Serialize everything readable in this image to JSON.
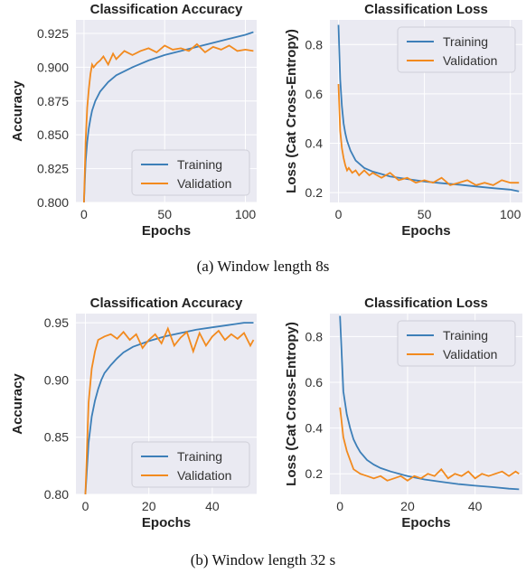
{
  "colors": {
    "training": "#3d7fb8",
    "validation": "#f28a1e",
    "grid": "#ffffff",
    "plot_bg": "#eaeaf2"
  },
  "captions": {
    "a": "(a) Window length 8s",
    "b": "(b) Window length 32 s"
  },
  "chart_data": [
    {
      "type": "line",
      "title": "Classification Accuracy",
      "xlabel": "Epochs",
      "ylabel": "Accuracy",
      "xlim": [
        -5,
        107
      ],
      "ylim": [
        0.8,
        0.935
      ],
      "xticks": [
        0,
        50,
        100
      ],
      "yticks": [
        0.8,
        0.825,
        0.85,
        0.875,
        0.9,
        0.925
      ],
      "ytick_labels": [
        "0.800",
        "0.825",
        "0.850",
        "0.875",
        "0.900",
        "0.925"
      ],
      "grid": true,
      "legend": "bottom-right",
      "series": [
        {
          "name": "Training",
          "x": [
            0,
            1,
            2,
            3,
            4,
            5,
            7,
            10,
            15,
            20,
            30,
            40,
            50,
            60,
            70,
            80,
            90,
            100,
            105
          ],
          "y": [
            0.8,
            0.83,
            0.845,
            0.855,
            0.862,
            0.868,
            0.875,
            0.882,
            0.889,
            0.894,
            0.9,
            0.905,
            0.909,
            0.912,
            0.915,
            0.918,
            0.921,
            0.924,
            0.926
          ]
        },
        {
          "name": "Validation",
          "x": [
            0,
            1,
            2,
            3,
            4,
            5,
            6,
            8,
            10,
            12,
            15,
            18,
            20,
            25,
            30,
            35,
            40,
            45,
            50,
            55,
            60,
            65,
            70,
            75,
            80,
            85,
            90,
            95,
            100,
            105
          ],
          "y": [
            0.8,
            0.845,
            0.87,
            0.884,
            0.895,
            0.902,
            0.9,
            0.903,
            0.905,
            0.908,
            0.902,
            0.91,
            0.906,
            0.912,
            0.909,
            0.912,
            0.914,
            0.911,
            0.916,
            0.913,
            0.914,
            0.912,
            0.917,
            0.911,
            0.915,
            0.913,
            0.916,
            0.912,
            0.913,
            0.912
          ]
        }
      ]
    },
    {
      "type": "line",
      "title": "Classification Loss",
      "xlabel": "Epochs",
      "ylabel": "Loss (Cat Cross-Entropy)",
      "xlim": [
        -5,
        107
      ],
      "ylim": [
        0.16,
        0.9
      ],
      "xticks": [
        0,
        50,
        100
      ],
      "yticks": [
        0.2,
        0.4,
        0.6,
        0.8
      ],
      "ytick_labels": [
        "0.2",
        "0.4",
        "0.6",
        "0.8"
      ],
      "grid": true,
      "legend": "top-right",
      "series": [
        {
          "name": "Training",
          "x": [
            0,
            1,
            2,
            3,
            4,
            5,
            7,
            10,
            15,
            20,
            30,
            40,
            50,
            60,
            70,
            80,
            90,
            100,
            105
          ],
          "y": [
            0.88,
            0.66,
            0.55,
            0.48,
            0.44,
            0.41,
            0.37,
            0.33,
            0.3,
            0.285,
            0.265,
            0.255,
            0.245,
            0.238,
            0.232,
            0.225,
            0.218,
            0.212,
            0.205
          ]
        },
        {
          "name": "Validation",
          "x": [
            0,
            1,
            2,
            3,
            4,
            5,
            6,
            8,
            10,
            12,
            15,
            18,
            20,
            25,
            30,
            35,
            40,
            45,
            50,
            55,
            60,
            65,
            70,
            75,
            80,
            85,
            90,
            95,
            100,
            105
          ],
          "y": [
            0.64,
            0.45,
            0.38,
            0.34,
            0.31,
            0.29,
            0.3,
            0.28,
            0.29,
            0.27,
            0.29,
            0.27,
            0.28,
            0.26,
            0.28,
            0.25,
            0.26,
            0.24,
            0.25,
            0.24,
            0.26,
            0.23,
            0.24,
            0.25,
            0.23,
            0.24,
            0.23,
            0.25,
            0.24,
            0.24
          ]
        }
      ]
    },
    {
      "type": "line",
      "title": "Classification Accuracy",
      "xlabel": "Epochs",
      "ylabel": "Accuracy",
      "xlim": [
        -3,
        54
      ],
      "ylim": [
        0.8,
        0.958
      ],
      "xticks": [
        0,
        20,
        40
      ],
      "yticks": [
        0.8,
        0.85,
        0.9,
        0.95
      ],
      "ytick_labels": [
        "0.80",
        "0.85",
        "0.90",
        "0.95"
      ],
      "grid": true,
      "legend": "bottom-right",
      "series": [
        {
          "name": "Training",
          "x": [
            0,
            1,
            2,
            3,
            4,
            5,
            6,
            8,
            10,
            12,
            15,
            20,
            25,
            30,
            35,
            40,
            45,
            50,
            53
          ],
          "y": [
            0.8,
            0.845,
            0.868,
            0.882,
            0.892,
            0.9,
            0.906,
            0.913,
            0.919,
            0.924,
            0.929,
            0.934,
            0.938,
            0.941,
            0.944,
            0.946,
            0.948,
            0.95,
            0.95
          ]
        },
        {
          "name": "Validation",
          "x": [
            0,
            1,
            2,
            3,
            4,
            6,
            8,
            10,
            12,
            14,
            16,
            18,
            20,
            22,
            24,
            26,
            28,
            30,
            32,
            34,
            36,
            38,
            40,
            42,
            44,
            46,
            48,
            50,
            52,
            53
          ],
          "y": [
            0.8,
            0.88,
            0.91,
            0.925,
            0.935,
            0.938,
            0.94,
            0.936,
            0.942,
            0.935,
            0.94,
            0.928,
            0.935,
            0.94,
            0.932,
            0.945,
            0.93,
            0.937,
            0.942,
            0.925,
            0.941,
            0.93,
            0.938,
            0.943,
            0.935,
            0.94,
            0.936,
            0.941,
            0.93,
            0.935
          ]
        }
      ]
    },
    {
      "type": "line",
      "title": "Classification Loss",
      "xlabel": "Epochs",
      "ylabel": "Loss (Cat Cross-Entropy)",
      "xlim": [
        -3,
        54
      ],
      "ylim": [
        0.11,
        0.9
      ],
      "xticks": [
        0,
        20,
        40
      ],
      "yticks": [
        0.2,
        0.4,
        0.6,
        0.8
      ],
      "ytick_labels": [
        "0.2",
        "0.4",
        "0.6",
        "0.8"
      ],
      "grid": true,
      "legend": "top-right",
      "series": [
        {
          "name": "Training",
          "x": [
            0,
            1,
            2,
            3,
            4,
            5,
            6,
            8,
            10,
            12,
            15,
            20,
            25,
            30,
            35,
            40,
            45,
            50,
            53
          ],
          "y": [
            0.89,
            0.56,
            0.46,
            0.4,
            0.35,
            0.32,
            0.295,
            0.26,
            0.24,
            0.225,
            0.21,
            0.19,
            0.175,
            0.165,
            0.155,
            0.148,
            0.142,
            0.135,
            0.132
          ]
        },
        {
          "name": "Validation",
          "x": [
            0,
            1,
            2,
            3,
            4,
            6,
            8,
            10,
            12,
            14,
            16,
            18,
            20,
            22,
            24,
            26,
            28,
            30,
            32,
            34,
            36,
            38,
            40,
            42,
            44,
            46,
            48,
            50,
            52,
            53
          ],
          "y": [
            0.49,
            0.36,
            0.3,
            0.26,
            0.22,
            0.2,
            0.19,
            0.18,
            0.19,
            0.17,
            0.18,
            0.19,
            0.17,
            0.19,
            0.18,
            0.2,
            0.19,
            0.22,
            0.18,
            0.2,
            0.19,
            0.21,
            0.18,
            0.2,
            0.19,
            0.2,
            0.21,
            0.19,
            0.21,
            0.2
          ]
        }
      ]
    }
  ]
}
